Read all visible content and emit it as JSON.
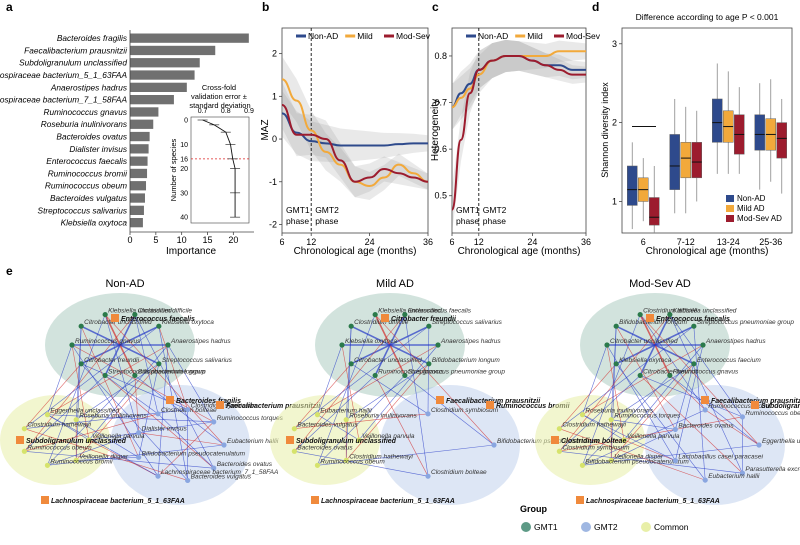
{
  "panel_letters": [
    "a",
    "b",
    "c",
    "d",
    "e"
  ],
  "chart_data": [
    {
      "panel": "a",
      "type": "bar",
      "orientation": "horizontal",
      "categories": [
        "Bacteroides fragilis",
        "Faecalibacterium prausnitzii",
        "Subdoligranulum unclassified",
        "Lachnospiraceae bacterium_5_1_63FAA",
        "Anaerostipes hadrus",
        "Lachnospiraceae bacterium_7_1_58FAA",
        "Ruminococcus gnavus",
        "Roseburia inulinivorans",
        "Bacteroides ovatus",
        "Dialister invisus",
        "Enterococcus faecalis",
        "Ruminococcus bromii",
        "Ruminococcus obeum",
        "Bacteroides vulgatus",
        "Streptococcus salivarius",
        "Klebsiella oxytoca"
      ],
      "values": [
        23,
        16.5,
        13.5,
        12.5,
        11,
        8.5,
        5.5,
        4.5,
        3.8,
        3.6,
        3.4,
        3.3,
        3.1,
        2.9,
        2.7,
        2.5
      ],
      "xlabel": "Importance",
      "xticks": [
        "0",
        "5",
        "10",
        "15",
        "20"
      ],
      "xlim": [
        0,
        24
      ],
      "inset": {
        "label": "Cross-fold validation error ± standard deviation",
        "ylabel": "Number of species",
        "xticks": [
          "0.7",
          "0.8",
          "0.9"
        ],
        "yticks": [
          "0",
          "10",
          "16",
          "20",
          "30",
          "40"
        ],
        "cutoff": 16,
        "x": [
          0.7,
          0.75,
          0.8,
          0.82,
          0.83,
          0.84,
          0.84,
          0.84
        ],
        "y": [
          0,
          2,
          5,
          10,
          16,
          20,
          30,
          40
        ]
      }
    },
    {
      "panel": "b",
      "type": "line",
      "legend": [
        "Non-AD",
        "Mild",
        "Mod-Sev"
      ],
      "colors": [
        "#2e4a8c",
        "#f2a93b",
        "#9c1c2e"
      ],
      "xlabel": "Chronological age (months)",
      "ylabel": "MAZ",
      "xticks": [
        "6",
        "12",
        "24",
        "36"
      ],
      "yticks": [
        "2",
        "1",
        "0",
        "-1",
        "-2"
      ],
      "xlim": [
        6,
        36
      ],
      "ylim": [
        -2.2,
        2.6
      ],
      "phase_labels": [
        "GMT1 phase",
        "GMT2 phase"
      ],
      "x": [
        6,
        9,
        12,
        15,
        18,
        21,
        24,
        27,
        30,
        33,
        36
      ],
      "series": [
        {
          "name": "Non-AD",
          "values": [
            0.6,
            0.15,
            -0.05,
            -0.1,
            -0.15,
            -0.15,
            -0.15,
            -0.15,
            -0.12,
            -0.1,
            -0.1
          ]
        },
        {
          "name": "Mild",
          "values": [
            1.4,
            0.9,
            0.2,
            -0.3,
            -0.6,
            -1.0,
            -1.1,
            -0.9,
            -0.6,
            -0.8,
            -1.0
          ]
        },
        {
          "name": "Mod-Sev",
          "values": [
            0.8,
            0.1,
            0.1,
            0.0,
            -0.5,
            -1.0,
            -0.9,
            -0.7,
            -0.8,
            -0.9,
            -1.0
          ]
        }
      ]
    },
    {
      "panel": "c",
      "type": "line",
      "legend": [
        "Non-AD",
        "Mild",
        "Mod-Sev"
      ],
      "colors": [
        "#2e4a8c",
        "#f2a93b",
        "#9c1c2e"
      ],
      "xlabel": "Chronological age (months)",
      "ylabel": "Heterogeneity",
      "xticks": [
        "6",
        "12",
        "24",
        "36"
      ],
      "yticks": [
        "0.8",
        "0.7",
        "0.6",
        "0.5"
      ],
      "xlim": [
        6,
        36
      ],
      "ylim": [
        0.42,
        0.86
      ],
      "phase_labels": [
        "GMT1 phase",
        "GMT2 phase"
      ],
      "x": [
        6,
        8,
        10,
        12,
        15,
        18,
        21,
        24,
        27,
        30,
        33,
        36
      ],
      "series": [
        {
          "name": "Non-AD",
          "values": [
            0.69,
            0.72,
            0.74,
            0.77,
            0.79,
            0.8,
            0.8,
            0.79,
            0.78,
            0.78,
            0.77,
            0.77
          ]
        },
        {
          "name": "Mild",
          "values": [
            0.69,
            0.71,
            0.73,
            0.76,
            0.79,
            0.8,
            0.8,
            0.8,
            0.8,
            0.81,
            0.81,
            0.81
          ]
        },
        {
          "name": "Mod-Sev",
          "values": [
            0.47,
            0.62,
            0.72,
            0.77,
            0.79,
            0.8,
            0.8,
            0.79,
            0.78,
            0.77,
            0.76,
            0.76
          ]
        }
      ]
    },
    {
      "panel": "d",
      "type": "box",
      "title": "Difference according to age P < 0.001",
      "xlabel": "Chronological age (months)",
      "ylabel": "Shannon diversity index",
      "categories": [
        "6",
        "7-12",
        "13-24",
        "25-36"
      ],
      "yticks": [
        "3",
        "2",
        "1"
      ],
      "ylim": [
        0.6,
        3.2
      ],
      "legend": [
        "Non-AD",
        "Mild AD",
        "Mod-Sev AD"
      ],
      "colors": [
        "#2e4a8c",
        "#f2a93b",
        "#9c1c2e"
      ],
      "series": [
        {
          "name": "Non-AD",
          "boxes": [
            [
              0.65,
              0.95,
              1.15,
              1.45,
              1.75
            ],
            [
              0.85,
              1.15,
              1.45,
              1.85,
              2.3
            ],
            [
              1.35,
              1.75,
              2.0,
              2.3,
              2.75
            ],
            [
              1.15,
              1.65,
              1.85,
              2.1,
              2.5
            ]
          ]
        },
        {
          "name": "Mild AD",
          "boxes": [
            [
              0.75,
              1.0,
              1.15,
              1.3,
              1.55
            ],
            [
              0.85,
              1.3,
              1.55,
              1.75,
              2.2
            ],
            [
              1.35,
              1.75,
              1.95,
              2.15,
              2.65
            ],
            [
              1.25,
              1.65,
              1.85,
              2.05,
              2.55
            ]
          ]
        },
        {
          "name": "Mod-Sev AD",
          "boxes": [
            [
              0.6,
              0.7,
              0.8,
              1.05,
              1.45
            ],
            [
              1.0,
              1.3,
              1.5,
              1.75,
              2.15
            ],
            [
              1.35,
              1.6,
              1.85,
              2.1,
              2.45
            ],
            [
              1.1,
              1.55,
              1.8,
              2.0,
              2.3
            ]
          ]
        }
      ]
    }
  ],
  "panel_e": {
    "networks": [
      {
        "title": "Non-AD",
        "bold_labels": [
          "Enterococcus faecalis",
          "Bacteroides fragilis",
          "Faecalibacterium prausnitzii",
          "Subdoligranulum unclassified",
          "Lachnospiraceae bacterium_5_1_63FAA"
        ],
        "labels": [
          "Anaerostipes hadrus",
          "Streptococcus salivarius",
          "Bifidobacterium longum",
          "Streptococcus pneumoniae group",
          "Citrobacter freundii",
          "Ruminococcus gnavus",
          "Citrobacter unclassified",
          "Klebsiella unclassified",
          "Clostridium difficile",
          "Klebsiella oxytoca",
          "Veillonella parvula",
          "Veillonella dispar",
          "Ruminococcus bromii",
          "Ruminococcus obeum",
          "Clostridium hathewayi",
          "Eggerthella unclassified",
          "Roseburia inulinivorans",
          "Eubacterium hallii",
          "Bacteroides ovatus",
          "Bacteroides vulgatus",
          "Lachnospiraceae bacterium_7_1_58FAA",
          "Bifidobacterium pseudocatenulatum",
          "Dialister invisus",
          "Clostridium bolteae",
          "Clostridium symbiosum",
          "Ruminococcus torques"
        ]
      },
      {
        "title": "Mild AD",
        "bold_labels": [
          "Citrobacter freundii",
          "Faecalibacterium prausnitzii",
          "Ruminococcus bromii",
          "Subdoligranulum unclassified",
          "Lachnospiraceae bacterium_5_1_63FAA"
        ],
        "labels": [
          "Anaerostipes hadrus",
          "Bifidobacterium longum",
          "Streptococcus pneumoniae group",
          "Ruminococcus gnavus",
          "Citrobacter unclassified",
          "Klebsiella oxytoca",
          "Clostridium difficile",
          "Klebsiella unclassified",
          "Enterococcus faecalis",
          "Streptococcus salivarius",
          "Veillonella parvula",
          "Clostridium hathewayi",
          "Ruminococcus obeum",
          "Bacteroides ovatus",
          "Bacteroides vulgatus",
          "Eubacterium hallii",
          "Roseburia inulinivorans",
          "Bifidobacterium pseudocatenulatum",
          "Clostridium bolteae",
          "Clostridium symbiosum"
        ]
      },
      {
        "title": "Mod-Sev AD",
        "bold_labels": [
          "Enterococcus faecalis",
          "Faecalibacterium prausnitzii",
          "Subdoligranulum unclassified",
          "Clostridium bolteae",
          "Lachnospiraceae bacterium_5_1_63FAA"
        ],
        "labels": [
          "Anaerostipes hadrus",
          "Enterococcus faecium",
          "Ruminococcus gnavus",
          "Citrobacter freundii",
          "Klebsiella oxytoca",
          "Citrobacter unclassified",
          "Bifidobacterium longum",
          "Clostridium difficile",
          "Klebsiella unclassified",
          "Streptococcus pneumoniae group",
          "Veillonella parvula",
          "Veillonella dispar",
          "Bifidobacterium pseudocatenulatum",
          "Clostridium symbiosum",
          "Clostridium hathewayi",
          "Roseburia inulinivorans",
          "Ruminococcus torques",
          "Eggerthella unclassified",
          "Parasutterella excrementihominis",
          "Eubacterium hallii",
          "Lactobacillus casei paracasei",
          "Bacteroides ovatus",
          "Ruminococcus bromii",
          "Ruminococcus obeum"
        ]
      }
    ],
    "legend_title": "Group",
    "legend_items": [
      {
        "label": "GMT1",
        "color": "#5d9a86"
      },
      {
        "label": "GMT2",
        "color": "#9fb7e2"
      },
      {
        "label": "Common",
        "color": "#e8efa8"
      }
    ]
  }
}
